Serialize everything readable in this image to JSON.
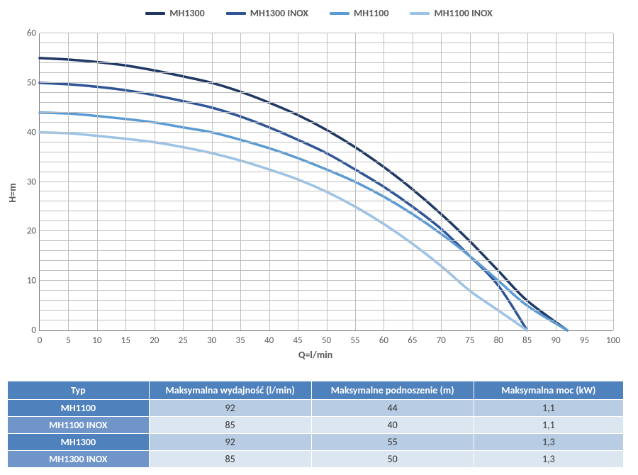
{
  "chart": {
    "type": "line",
    "xlabel": "Q=l/min",
    "ylabel": "H=m",
    "label_fontsize": 14,
    "label_color": "#595959",
    "xlim": [
      0,
      100
    ],
    "ylim": [
      0,
      60
    ],
    "xtick_step": 5,
    "ytick_step": 10,
    "xticks": [
      0,
      5,
      10,
      15,
      20,
      25,
      30,
      35,
      40,
      45,
      50,
      55,
      60,
      65,
      70,
      75,
      80,
      85,
      90,
      95,
      100
    ],
    "yticks": [
      0,
      10,
      20,
      30,
      40,
      50,
      60
    ],
    "minor_y_step": 2,
    "background_color": "#ffffff",
    "grid_color": "#bfbfbf",
    "line_width": 3.5,
    "series": [
      {
        "name": "MH1300",
        "color": "#1f3864",
        "points": [
          [
            0,
            55
          ],
          [
            5,
            54.7
          ],
          [
            10,
            54.2
          ],
          [
            15,
            53.5
          ],
          [
            20,
            52.5
          ],
          [
            25,
            51.3
          ],
          [
            30,
            50
          ],
          [
            35,
            48.2
          ],
          [
            40,
            46
          ],
          [
            45,
            43.5
          ],
          [
            50,
            40.5
          ],
          [
            55,
            37
          ],
          [
            60,
            33
          ],
          [
            65,
            28.5
          ],
          [
            70,
            23.5
          ],
          [
            75,
            18
          ],
          [
            80,
            12
          ],
          [
            85,
            6
          ],
          [
            92,
            0
          ]
        ]
      },
      {
        "name": "MH1300 INOX",
        "color": "#2f5597",
        "points": [
          [
            0,
            50
          ],
          [
            5,
            49.7
          ],
          [
            10,
            49.2
          ],
          [
            15,
            48.5
          ],
          [
            20,
            47.5
          ],
          [
            25,
            46.3
          ],
          [
            30,
            45
          ],
          [
            35,
            43.2
          ],
          [
            40,
            41
          ],
          [
            45,
            38.5
          ],
          [
            50,
            35.8
          ],
          [
            55,
            32.5
          ],
          [
            60,
            29
          ],
          [
            65,
            25
          ],
          [
            70,
            20.5
          ],
          [
            75,
            15
          ],
          [
            80,
            9
          ],
          [
            85,
            0
          ]
        ]
      },
      {
        "name": "MH1100",
        "color": "#5b9bd5",
        "points": [
          [
            0,
            44
          ],
          [
            5,
            43.8
          ],
          [
            10,
            43.3
          ],
          [
            15,
            42.7
          ],
          [
            20,
            42
          ],
          [
            25,
            41
          ],
          [
            30,
            40
          ],
          [
            35,
            38.5
          ],
          [
            40,
            36.8
          ],
          [
            45,
            34.8
          ],
          [
            50,
            32.5
          ],
          [
            55,
            30
          ],
          [
            60,
            27
          ],
          [
            65,
            23.5
          ],
          [
            70,
            19.5
          ],
          [
            75,
            15
          ],
          [
            80,
            10
          ],
          [
            85,
            5
          ],
          [
            92,
            0
          ]
        ]
      },
      {
        "name": "MH1100 INOX",
        "color": "#9cc3e6",
        "points": [
          [
            0,
            40
          ],
          [
            5,
            39.8
          ],
          [
            10,
            39.3
          ],
          [
            15,
            38.7
          ],
          [
            20,
            38
          ],
          [
            25,
            37
          ],
          [
            30,
            35.8
          ],
          [
            35,
            34.3
          ],
          [
            40,
            32.5
          ],
          [
            45,
            30.5
          ],
          [
            50,
            28
          ],
          [
            55,
            25
          ],
          [
            60,
            21.5
          ],
          [
            65,
            17.5
          ],
          [
            70,
            13
          ],
          [
            75,
            8
          ],
          [
            80,
            4
          ],
          [
            85,
            0
          ]
        ]
      }
    ]
  },
  "table": {
    "header_bg": "#4f81bd",
    "header_fg": "#ffffff",
    "row_odd_bg": "#b8cce4",
    "row_even_bg": "#dce6f1",
    "rowhead_odd_bg": "#4f81bd",
    "rowhead_even_bg": "#6f95c9",
    "columns": [
      "Typ",
      "Maksymalna wydajność (l/min)",
      "Maksymalne podnoszenie (m)",
      "Maksymalna moc (kW)"
    ],
    "col_widths": [
      "200px",
      "230px",
      "230px",
      "210px"
    ],
    "rows": [
      [
        "MH1100",
        "92",
        "44",
        "1,1"
      ],
      [
        "MH1100 INOX",
        "85",
        "40",
        "1,1"
      ],
      [
        "MH1300",
        "92",
        "55",
        "1,3"
      ],
      [
        "MH1300 INOX",
        "85",
        "50",
        "1,3"
      ]
    ]
  }
}
